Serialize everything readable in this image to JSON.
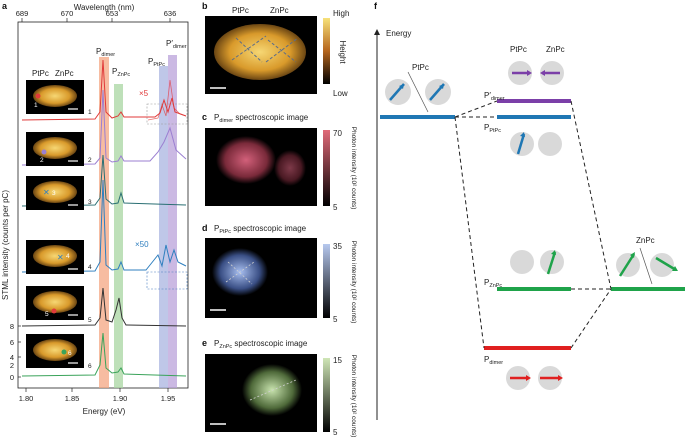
{
  "panel_a": {
    "label": "a",
    "top_axis_title": "Wavelength (nm)",
    "top_ticks": [
      "689",
      "670",
      "653",
      "636"
    ],
    "bottom_axis_title": "Energy (eV)",
    "bottom_ticks": [
      "1.80",
      "1.85",
      "1.90",
      "1.95"
    ],
    "y_axis_title": "STML intensity (counts per pC)",
    "y_ticks": [
      "8",
      "6",
      "4",
      "2",
      "0"
    ],
    "molecule_labels": [
      "PtPc",
      "ZnPc"
    ],
    "peaks": {
      "dimer": "P",
      "dimer_sub": "dimer",
      "znpc": "P",
      "znpc_sub": "ZnPc",
      "ptpc": "P",
      "ptpc_sub": "PtPc",
      "dimer_prime": "P′",
      "dimer_prime_sub": "dimer"
    },
    "zoom_top": "×5",
    "zoom_bottom": "×50",
    "trace_numbers": [
      "1",
      "2",
      "3",
      "4",
      "5",
      "6"
    ],
    "tip_numbers": [
      "1",
      "2",
      "3",
      "4",
      "5",
      "6"
    ]
  },
  "panel_b": {
    "label": "b",
    "molecule_labels": [
      "PtPc",
      "ZnPc"
    ],
    "cbar_high": "High",
    "cbar_low": "Low",
    "cbar_title": "Height"
  },
  "panel_c": {
    "label": "c",
    "title_p": "P",
    "title_sub": "dimer",
    "title_rest": " spectroscopic image",
    "cbar_max": "70",
    "cbar_min": "5",
    "cbar_title": "Photon intensity (10² counts)"
  },
  "panel_d": {
    "label": "d",
    "title_p": "P",
    "title_sub": "PtPc",
    "title_rest": " spectroscopic image",
    "cbar_max": "35",
    "cbar_min": "5",
    "cbar_title": "Photon intensity (10² counts)"
  },
  "panel_e": {
    "label": "e",
    "title_p": "P",
    "title_sub": "ZnPc",
    "title_rest": " spectroscopic image",
    "cbar_max": "15",
    "cbar_min": "5",
    "cbar_title": "Photon intensity (10² counts)"
  },
  "panel_f": {
    "label": "f",
    "axis_title": "Energy",
    "ptpc_label": "PtPc",
    "znpc_label": "ZnPc",
    "dimer_pair_left": "PtPc",
    "dimer_pair_right": "ZnPc",
    "p_dimer_prime": "P′",
    "p_dimer_prime_sub": "dimer",
    "p_ptpc": "P",
    "p_ptpc_sub": "PtPc",
    "p_znpc": "P",
    "p_znpc_sub": "ZnPc",
    "p_dimer": "P",
    "p_dimer_sub": "dimer"
  },
  "colors": {
    "dimer_band": "#f4a582",
    "znpc_band": "#a8d5a2",
    "ptpc_band": "#a9b4e0",
    "prime_band": "#b9a2d9",
    "trace1": "#e03a3a",
    "trace2": "#9b7fd1",
    "trace3": "#2a6f73",
    "trace4": "#2f7fbf",
    "trace5": "#333333",
    "trace6": "#3aa35a",
    "level_blue": "#1f77b4",
    "level_purple": "#7b3fa8",
    "level_green": "#1fa34a",
    "level_red": "#e02020"
  }
}
